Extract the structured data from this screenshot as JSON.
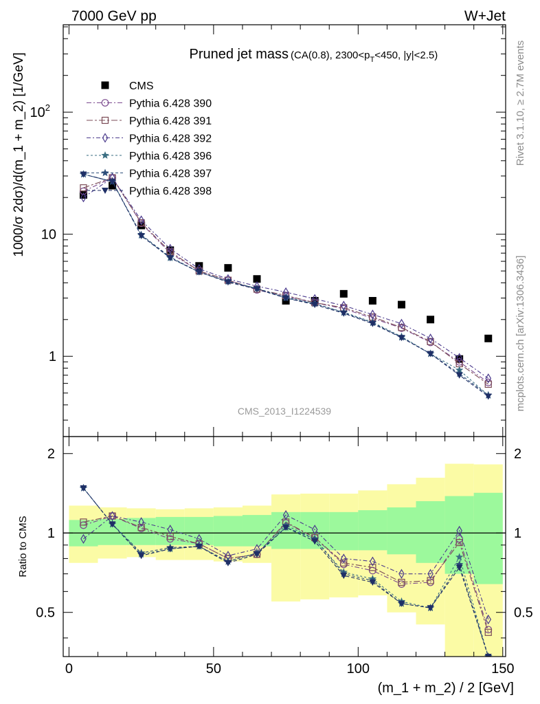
{
  "header": {
    "energy": "7000 GeV pp",
    "process": "W+Jet"
  },
  "side_labels": {
    "rivet": "Rivet 3.1.10, ≥ 2.7M events",
    "source": "mcplots.cern.ch [arXiv:1306.3436]"
  },
  "chart_data": [
    {
      "type": "scatter",
      "title": "Pruned jet mass",
      "title_cut_main": "(CA(0.8), 2300<p",
      "title_cut_sub": "T",
      "title_cut_rest": "<450, |y|<2.5)",
      "analysis_tag": "CMS_2013_I1224539",
      "ylabel": "1000/σ 2dσ)/d(m_1 + m_2) [1/GeV]",
      "xlabel": "(m_1 + m_2) / 2 [GeV]",
      "xlim": [
        -2,
        151
      ],
      "ylim": [
        0.22,
        520
      ],
      "yscale": "log",
      "y_ticks": [
        {
          "value": 1,
          "label": "1",
          "sup": ""
        },
        {
          "value": 10,
          "label": "10",
          "sup": ""
        },
        {
          "value": 100,
          "label": "10",
          "sup": "2"
        }
      ],
      "x": [
        5,
        15,
        25,
        35,
        45,
        55,
        65,
        75,
        85,
        95,
        105,
        115,
        125,
        135,
        145
      ],
      "legend_position": "top-left",
      "series": [
        {
          "name": "CMS",
          "color": "#000000",
          "marker": "filled-square",
          "dash": "",
          "values": [
            21.0,
            25.0,
            11.8,
            7.4,
            5.5,
            5.3,
            4.3,
            2.85,
            2.85,
            3.25,
            2.85,
            2.65,
            2.0,
            0.95,
            1.4
          ]
        },
        {
          "name": "Pythia 6.428 390",
          "color": "#7b4a8e",
          "marker": "open-circle",
          "dash": "7,3,2,3",
          "values": [
            22.5,
            29.0,
            12.3,
            7.0,
            5.0,
            4.2,
            3.5,
            3.1,
            2.75,
            2.45,
            2.05,
            1.7,
            1.3,
            0.9,
            0.61
          ]
        },
        {
          "name": "Pythia 6.428 391",
          "color": "#7a4a55",
          "marker": "open-square",
          "dash": "9,3,3,3",
          "values": [
            24.0,
            29.0,
            12.4,
            7.2,
            5.0,
            4.2,
            3.55,
            3.15,
            2.75,
            2.5,
            2.1,
            1.72,
            1.32,
            0.87,
            0.59
          ]
        },
        {
          "name": "Pythia 6.428 392",
          "color": "#4b3a8c",
          "marker": "open-diamond",
          "dash": "6,3,2,3",
          "values": [
            20.0,
            29.0,
            13.0,
            7.6,
            5.2,
            4.3,
            3.75,
            3.35,
            2.95,
            2.6,
            2.2,
            1.85,
            1.4,
            0.97,
            0.66
          ]
        },
        {
          "name": "Pythia 6.428 396",
          "color": "#3a6e82",
          "marker": "star",
          "dash": "3,3",
          "values": [
            31.0,
            27.0,
            9.8,
            6.4,
            4.9,
            4.1,
            3.6,
            3.05,
            2.7,
            2.3,
            1.9,
            1.45,
            1.05,
            0.77,
            0.48
          ]
        },
        {
          "name": "Pythia 6.428 397",
          "color": "#2d4e7a",
          "marker": "star",
          "dash": "4,3",
          "values": [
            31.0,
            27.0,
            9.9,
            6.5,
            4.9,
            4.1,
            3.6,
            3.0,
            2.7,
            2.28,
            1.88,
            1.43,
            1.05,
            0.72,
            0.48
          ]
        },
        {
          "name": "Pythia 6.428 398",
          "color": "#1f2f66",
          "marker": "filled-triangle-down",
          "dash": "5,3",
          "values": [
            31.0,
            27.0,
            9.7,
            6.4,
            4.9,
            4.05,
            3.55,
            3.0,
            2.65,
            2.25,
            1.85,
            1.42,
            1.05,
            0.7,
            0.47
          ]
        }
      ]
    },
    {
      "type": "line",
      "ylabel": "Ratio to CMS",
      "xlabel": "(m_1 + m_2) / 2 [GeV]",
      "xlim": [
        -2,
        151
      ],
      "ylim": [
        0.34,
        2.32
      ],
      "yscale": "log",
      "y_ticks": [
        0.5,
        1,
        2
      ],
      "x_ticks": [
        0,
        50,
        100,
        150
      ],
      "reference_line": 1,
      "x": [
        5,
        15,
        25,
        35,
        45,
        55,
        65,
        75,
        85,
        95,
        105,
        115,
        125,
        135,
        145
      ],
      "bin_edges": [
        0,
        10,
        20,
        30,
        40,
        50,
        60,
        70,
        80,
        90,
        100,
        110,
        120,
        130,
        140,
        150
      ],
      "bands": [
        {
          "name": "stat",
          "color": "#9cf99c",
          "low": [
            0.89,
            0.9,
            0.9,
            0.9,
            0.9,
            0.89,
            0.89,
            0.87,
            0.87,
            0.86,
            0.86,
            0.83,
            0.77,
            0.7,
            0.64
          ],
          "high": [
            1.12,
            1.13,
            1.14,
            1.15,
            1.15,
            1.16,
            1.17,
            1.2,
            1.2,
            1.2,
            1.22,
            1.25,
            1.32,
            1.38,
            1.42
          ]
        },
        {
          "name": "total",
          "color": "#fbfba5",
          "low": [
            0.77,
            0.8,
            0.81,
            0.79,
            0.79,
            0.78,
            0.77,
            0.55,
            0.56,
            0.57,
            0.58,
            0.5,
            0.45,
            0.3,
            0.3
          ],
          "high": [
            1.27,
            1.25,
            1.24,
            1.23,
            1.24,
            1.25,
            1.27,
            1.4,
            1.41,
            1.41,
            1.45,
            1.53,
            1.62,
            1.83,
            1.82
          ]
        }
      ],
      "series": [
        {
          "name": "Pythia 6.428 390",
          "color": "#7b4a8e",
          "marker": "open-circle",
          "dash": "7,3,2,3",
          "values": [
            1.07,
            1.16,
            1.04,
            0.95,
            0.91,
            0.8,
            0.83,
            1.09,
            0.96,
            0.76,
            0.72,
            0.64,
            0.65,
            0.95,
            0.43
          ]
        },
        {
          "name": "Pythia 6.428 391",
          "color": "#7a4a55",
          "marker": "open-square",
          "dash": "9,3,3,3",
          "values": [
            1.1,
            1.16,
            1.05,
            0.97,
            0.91,
            0.8,
            0.83,
            1.1,
            0.96,
            0.77,
            0.74,
            0.65,
            0.66,
            0.92,
            0.42
          ]
        },
        {
          "name": "Pythia 6.428 392",
          "color": "#4b3a8c",
          "marker": "open-diamond",
          "dash": "6,3,2,3",
          "values": [
            0.95,
            1.16,
            1.1,
            1.03,
            0.95,
            0.82,
            0.87,
            1.17,
            1.03,
            0.8,
            0.78,
            0.7,
            0.7,
            1.02,
            0.47
          ]
        },
        {
          "name": "Pythia 6.428 396",
          "color": "#3a6e82",
          "marker": "star",
          "dash": "3,3",
          "values": [
            1.48,
            1.08,
            0.83,
            0.87,
            0.89,
            0.78,
            0.84,
            1.07,
            0.95,
            0.71,
            0.67,
            0.55,
            0.52,
            0.81,
            0.34
          ]
        },
        {
          "name": "Pythia 6.428 397",
          "color": "#2d4e7a",
          "marker": "star",
          "dash": "4,3",
          "values": [
            1.48,
            1.08,
            0.84,
            0.88,
            0.89,
            0.78,
            0.84,
            1.05,
            0.95,
            0.7,
            0.66,
            0.54,
            0.52,
            0.76,
            0.34
          ]
        },
        {
          "name": "Pythia 6.428 398",
          "color": "#1f2f66",
          "marker": "filled-triangle-down",
          "dash": "5,3",
          "values": [
            1.48,
            1.08,
            0.82,
            0.87,
            0.89,
            0.77,
            0.83,
            1.05,
            0.93,
            0.69,
            0.65,
            0.54,
            0.52,
            0.74,
            0.34
          ]
        }
      ]
    }
  ]
}
